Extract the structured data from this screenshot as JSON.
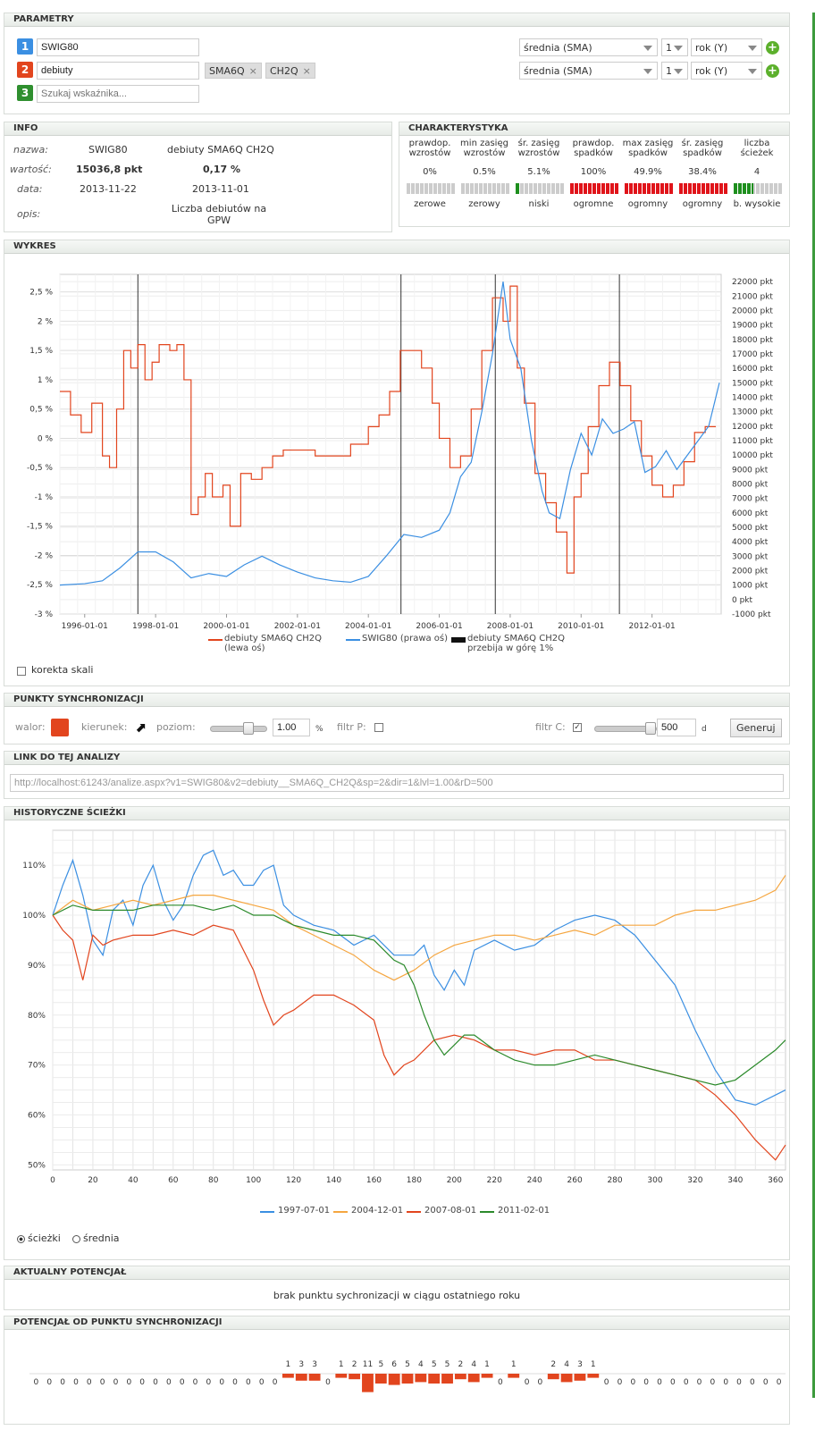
{
  "parametry": {
    "title": "PARAMETRY",
    "rows": [
      {
        "num": "1",
        "color": "#3b8fe2",
        "value": "SWIG80"
      },
      {
        "num": "2",
        "color": "#e2451e",
        "value": "debiuty",
        "tags": [
          "SMA6Q",
          "CH2Q"
        ]
      },
      {
        "num": "3",
        "color": "#2f8f2f",
        "placeholder": "Szukaj wskaźnika..."
      }
    ],
    "selectors": [
      {
        "method": "średnia (SMA)",
        "n": "1",
        "unit": "rok (Y)"
      },
      {
        "method": "średnia (SMA)",
        "n": "1",
        "unit": "rok (Y)"
      }
    ]
  },
  "info": {
    "title": "INFO",
    "labels": [
      "nazwa:",
      "wartość:",
      "data:",
      "opis:"
    ],
    "col1": [
      "SWIG80",
      "15036,8 pkt",
      "2013-11-22",
      ""
    ],
    "col2": [
      "debiuty SMA6Q CH2Q",
      "0,17 %",
      "2013-11-01",
      "Liczba debiutów na GPW"
    ]
  },
  "charakterystyka": {
    "title": "CHARAKTERYSTYKA",
    "cols": [
      {
        "h": "prawdop. wzrostów",
        "v": "0%",
        "d": "zerowe",
        "fill": 0,
        "color": "#ccc"
      },
      {
        "h": "min zasięg wzrostów",
        "v": "0.5%",
        "d": "zerowy",
        "fill": 0,
        "color": "#ccc"
      },
      {
        "h": "śr. zasięg wzrostów",
        "v": "5.1%",
        "d": "niski",
        "fill": 0.1,
        "color": "#1e8f1e"
      },
      {
        "h": "prawdop. spadków",
        "v": "100%",
        "d": "ogromne",
        "fill": 1,
        "color": "#e0141a"
      },
      {
        "h": "max zasięg spadków",
        "v": "49.9%",
        "d": "ogromny",
        "fill": 1,
        "color": "#e0141a"
      },
      {
        "h": "śr. zasięg spadków",
        "v": "38.4%",
        "d": "ogromny",
        "fill": 1,
        "color": "#e0141a"
      },
      {
        "h": "liczba ścieżek",
        "v": "4",
        "d": "b. wysokie",
        "fill": 0.4,
        "color": "#1e8f1e"
      }
    ]
  },
  "wykres": {
    "title": "WYKRES",
    "korekta": "korekta skali",
    "legend": [
      "debiuty SMA6Q CH2Q (lewa oś)",
      "SWIG80 (prawa oś)",
      "debiuty SMA6Q CH2Q przebija w górę 1%"
    ]
  },
  "chart_data": [
    {
      "type": "line",
      "title": "",
      "x_ticks": [
        "1996-01-01",
        "1998-01-01",
        "2000-01-01",
        "2002-01-01",
        "2004-01-01",
        "2006-01-01",
        "2008-01-01",
        "2010-01-01",
        "2012-01-01"
      ],
      "y_left_ticks": [
        "2,5 %",
        "2 %",
        "1,5 %",
        "1 %",
        "0,5 %",
        "0 %",
        "-0,5 %",
        "-1 %",
        "-1,5 %",
        "-2 %",
        "-2,5 %",
        "-3 %"
      ],
      "y_right_ticks": [
        "22000 pkt",
        "21000 pkt",
        "20000 pkt",
        "19000 pkt",
        "18000 pkt",
        "17000 pkt",
        "16000 pkt",
        "15000 pkt",
        "14000 pkt",
        "13000 pkt",
        "12000 pkt",
        "11000 pkt",
        "10000 pkt",
        "9000 pkt",
        "8000 pkt",
        "7000 pkt",
        "6000 pkt",
        "5000 pkt",
        "4000 pkt",
        "3000 pkt",
        "2000 pkt",
        "1000 pkt",
        "0 pkt",
        "-1000 pkt"
      ],
      "ylim_left": [
        -3,
        2.8
      ],
      "ylim_right": [
        -1000,
        22500
      ],
      "xlim": [
        1995.3,
        2013.95
      ],
      "vlines": [
        1997.5,
        2004.92,
        2007.58,
        2011.08
      ],
      "series": [
        {
          "name": "debiuty SMA6Q CH2Q (lewa oś)",
          "color": "#e2451e",
          "axis": "left",
          "x": [
            1995.3,
            1995.6,
            1995.9,
            1996.2,
            1996.5,
            1996.7,
            1996.9,
            1997.1,
            1997.3,
            1997.5,
            1997.7,
            1997.9,
            1998.1,
            1998.4,
            1998.6,
            1998.8,
            1999.0,
            1999.2,
            1999.4,
            1999.6,
            1999.9,
            2000.1,
            2000.4,
            2000.7,
            2001.0,
            2001.3,
            2001.6,
            2002.0,
            2002.5,
            2003.0,
            2003.5,
            2004.0,
            2004.3,
            2004.6,
            2004.9,
            2005.2,
            2005.5,
            2005.8,
            2006.0,
            2006.3,
            2006.6,
            2006.9,
            2007.2,
            2007.5,
            2007.8,
            2008.0,
            2008.2,
            2008.4,
            2008.7,
            2009.0,
            2009.3,
            2009.6,
            2009.8,
            2010.0,
            2010.2,
            2010.5,
            2010.8,
            2011.1,
            2011.4,
            2011.7,
            2012.0,
            2012.3,
            2012.6,
            2012.9,
            2013.2,
            2013.5,
            2013.8
          ],
          "y": [
            0.8,
            0.4,
            0.1,
            0.6,
            -0.3,
            -0.5,
            0.5,
            1.5,
            1.2,
            1.6,
            1.0,
            1.3,
            1.6,
            1.5,
            1.6,
            1.0,
            -1.3,
            -1.0,
            -0.6,
            -1.0,
            -0.8,
            -1.5,
            -0.6,
            -0.7,
            -0.5,
            -0.3,
            -0.2,
            -0.2,
            -0.3,
            -0.3,
            -0.1,
            0.2,
            0.4,
            0.8,
            1.5,
            1.5,
            1.2,
            0.6,
            0.0,
            -0.5,
            -0.3,
            0.5,
            1.5,
            2.4,
            2.0,
            2.6,
            1.2,
            0.6,
            -0.6,
            -1.1,
            -1.6,
            -2.3,
            -1.0,
            -0.6,
            0.2,
            0.9,
            1.3,
            0.9,
            0.3,
            -0.3,
            -0.8,
            -1.0,
            -0.8,
            -0.4,
            0.1,
            0.2,
            0.2
          ]
        },
        {
          "name": "SWIG80 (prawa oś)",
          "color": "#3b8fe2",
          "axis": "right",
          "x": [
            1995.3,
            1996.0,
            1996.5,
            1997.0,
            1997.5,
            1998.0,
            1998.5,
            1999.0,
            1999.5,
            2000.0,
            2000.5,
            2001.0,
            2001.5,
            2002.0,
            2002.5,
            2003.0,
            2003.5,
            2004.0,
            2004.5,
            2005.0,
            2005.5,
            2006.0,
            2006.3,
            2006.6,
            2006.9,
            2007.2,
            2007.5,
            2007.8,
            2008.0,
            2008.3,
            2008.6,
            2008.9,
            2009.1,
            2009.4,
            2009.7,
            2010.0,
            2010.3,
            2010.6,
            2010.9,
            2011.2,
            2011.5,
            2011.8,
            2012.1,
            2012.4,
            2012.7,
            2013.0,
            2013.3,
            2013.6,
            2013.9
          ],
          "y": [
            1000,
            1100,
            1300,
            2200,
            3300,
            3300,
            2600,
            1500,
            1800,
            1600,
            2400,
            3000,
            2400,
            1900,
            1500,
            1300,
            1200,
            1600,
            3000,
            4500,
            4300,
            4800,
            6000,
            8500,
            9500,
            13000,
            17000,
            22000,
            18000,
            16000,
            11000,
            7500,
            6000,
            5600,
            9000,
            11500,
            10000,
            12500,
            11500,
            11800,
            12300,
            8800,
            9200,
            10300,
            9000,
            10000,
            11000,
            12000,
            15000
          ]
        }
      ]
    },
    {
      "type": "line",
      "title": "",
      "x_ticks": [
        "0",
        "20",
        "40",
        "60",
        "80",
        "100",
        "120",
        "140",
        "160",
        "180",
        "200",
        "220",
        "240",
        "260",
        "280",
        "300",
        "320",
        "340",
        "360"
      ],
      "y_ticks": [
        "110%",
        "100%",
        "90%",
        "80%",
        "70%",
        "60%",
        "50%"
      ],
      "xlim": [
        0,
        365
      ],
      "ylim": [
        49,
        117
      ],
      "series": [
        {
          "name": "1997-07-01",
          "color": "#3b8fe2",
          "x": [
            0,
            5,
            10,
            15,
            20,
            25,
            30,
            35,
            40,
            45,
            50,
            55,
            60,
            65,
            70,
            75,
            80,
            85,
            90,
            95,
            100,
            105,
            110,
            115,
            120,
            130,
            140,
            150,
            160,
            170,
            180,
            185,
            190,
            195,
            200,
            205,
            210,
            220,
            230,
            240,
            250,
            260,
            270,
            280,
            290,
            300,
            310,
            320,
            330,
            340,
            350,
            360,
            365
          ],
          "y": [
            100,
            106,
            111,
            104,
            95,
            92,
            101,
            103,
            98,
            106,
            110,
            103,
            99,
            102,
            108,
            112,
            113,
            108,
            109,
            106,
            106,
            109,
            110,
            102,
            100,
            98,
            97,
            94,
            96,
            92,
            92,
            94,
            88,
            85,
            89,
            86,
            93,
            95,
            93,
            94,
            97,
            99,
            100,
            99,
            96,
            91,
            86,
            77,
            69,
            63,
            62,
            64,
            65
          ]
        },
        {
          "name": "2004-12-01",
          "color": "#f5a640",
          "x": [
            0,
            10,
            20,
            30,
            40,
            50,
            60,
            70,
            80,
            90,
            100,
            110,
            120,
            130,
            140,
            150,
            160,
            170,
            180,
            190,
            200,
            210,
            220,
            230,
            240,
            250,
            260,
            270,
            280,
            290,
            300,
            310,
            320,
            330,
            340,
            350,
            360,
            365
          ],
          "y": [
            100,
            103,
            101,
            102,
            103,
            102,
            103,
            104,
            104,
            103,
            102,
            101,
            98,
            96,
            94,
            92,
            89,
            87,
            89,
            92,
            94,
            95,
            96,
            96,
            95,
            96,
            97,
            96,
            98,
            98,
            98,
            100,
            101,
            101,
            102,
            103,
            105,
            108
          ]
        },
        {
          "name": "2007-08-01",
          "color": "#e2451e",
          "x": [
            0,
            5,
            10,
            15,
            20,
            25,
            30,
            40,
            50,
            60,
            70,
            80,
            90,
            95,
            100,
            105,
            110,
            115,
            120,
            130,
            140,
            150,
            160,
            165,
            170,
            175,
            180,
            190,
            200,
            210,
            220,
            230,
            240,
            250,
            260,
            270,
            280,
            290,
            300,
            310,
            320,
            330,
            340,
            350,
            360,
            365
          ],
          "y": [
            100,
            97,
            95,
            87,
            96,
            94,
            95,
            96,
            96,
            97,
            96,
            98,
            97,
            93,
            89,
            83,
            78,
            80,
            81,
            84,
            84,
            82,
            79,
            72,
            68,
            70,
            71,
            75,
            76,
            75,
            73,
            73,
            72,
            73,
            73,
            71,
            71,
            70,
            69,
            68,
            67,
            64,
            60,
            55,
            51,
            54
          ]
        },
        {
          "name": "2011-02-01",
          "color": "#2b8a2b",
          "x": [
            0,
            10,
            20,
            30,
            40,
            50,
            60,
            70,
            80,
            90,
            100,
            110,
            120,
            130,
            140,
            150,
            160,
            170,
            175,
            180,
            185,
            190,
            195,
            200,
            205,
            210,
            220,
            230,
            240,
            250,
            260,
            270,
            280,
            290,
            300,
            310,
            320,
            330,
            340,
            350,
            360,
            365
          ],
          "y": [
            100,
            102,
            101,
            101,
            101,
            102,
            102,
            102,
            101,
            102,
            100,
            100,
            98,
            97,
            96,
            96,
            95,
            91,
            90,
            86,
            80,
            75,
            72,
            74,
            76,
            76,
            73,
            71,
            70,
            70,
            71,
            72,
            71,
            70,
            69,
            68,
            67,
            66,
            67,
            70,
            73,
            75
          ]
        }
      ]
    }
  ],
  "punkty": {
    "title": "PUNKTY SYNCHRONIZACJI",
    "walor": "walor:",
    "kierunek": "kierunek:",
    "poziom": "poziom:",
    "poziom_val": "1.00",
    "pct": "%",
    "filtrP": "filtr P:",
    "filtrC": "filtr C:",
    "c_val": "500",
    "d": "d",
    "generuj": "Generuj",
    "walor_color": "#e2451e"
  },
  "link": {
    "title": "LINK DO TEJ ANALIZY",
    "url": "http://localhost:61243/analize.aspx?v1=SWIG80&v2=debiuty__SMA6Q_CH2Q&sp=2&dir=1&lvl=1.00&rD=500"
  },
  "historyczne": {
    "title": "HISTORYCZNE ŚCIEŻKI",
    "radio1": "ścieżki",
    "radio2": "średnia"
  },
  "aktualny": {
    "title": "AKTUALNY POTENCJAŁ",
    "text": "brak punktu sychronizacji w ciągu ostatniego roku"
  },
  "potencjal": {
    "title": "POTENCJAŁ OD PUNKTU SYNCHRONIZACJI",
    "values": [
      0,
      0,
      0,
      0,
      0,
      0,
      0,
      0,
      0,
      0,
      0,
      0,
      0,
      0,
      0,
      0,
      0,
      0,
      0,
      1,
      3,
      3,
      0,
      1,
      2,
      11,
      5,
      6,
      5,
      4,
      5,
      5,
      2,
      4,
      1,
      0,
      1,
      0,
      0,
      2,
      4,
      3,
      1,
      0,
      0,
      0,
      0,
      0,
      0,
      0,
      0,
      0,
      0,
      0,
      0,
      0,
      0
    ]
  }
}
